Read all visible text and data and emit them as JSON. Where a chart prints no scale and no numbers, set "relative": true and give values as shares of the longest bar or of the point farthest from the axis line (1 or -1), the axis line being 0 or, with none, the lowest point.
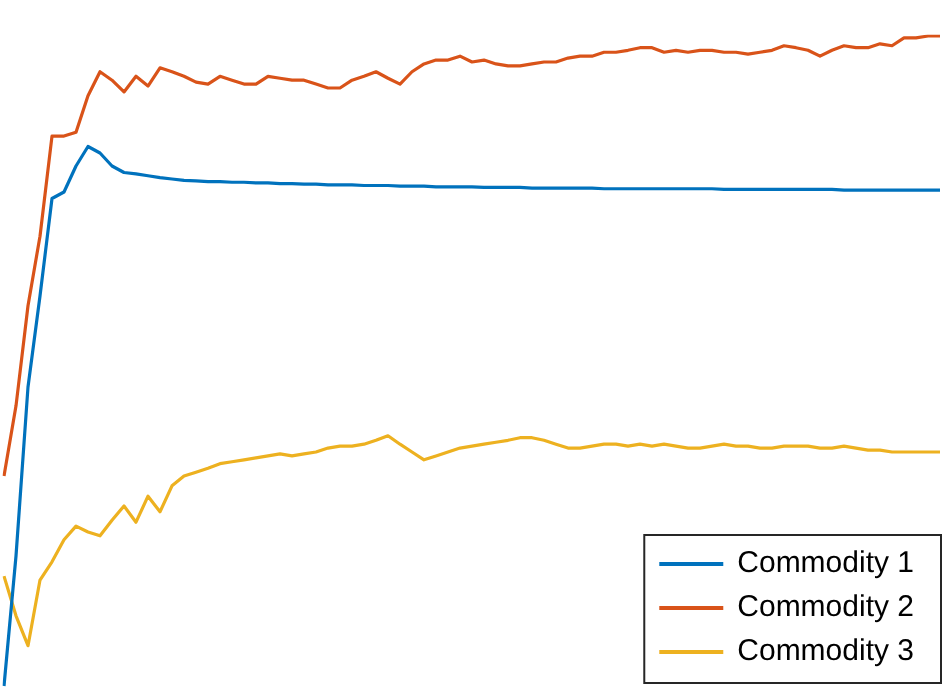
{
  "chart_data": {
    "type": "line",
    "relative": true,
    "legend": "bottom right",
    "marker": "none",
    "line_style": "solid",
    "categories": [
      null,
      null,
      null,
      null,
      null,
      null,
      null,
      null,
      null,
      null,
      null,
      null,
      null,
      null,
      null,
      null,
      null,
      null,
      null,
      null,
      null,
      null,
      null,
      null,
      null,
      null,
      null,
      null,
      null,
      null,
      null,
      null,
      null,
      null,
      null,
      null,
      null,
      null,
      null,
      null,
      null,
      null,
      null,
      null,
      null,
      null,
      null,
      null,
      null,
      null,
      null,
      null,
      null,
      null,
      null,
      null,
      null,
      null,
      null,
      null,
      null,
      null,
      null,
      null,
      null,
      null,
      null,
      null,
      null,
      null,
      null,
      null,
      null,
      null,
      null,
      null,
      null,
      null,
      null
    ],
    "series": [
      {
        "name": "Commodity 1",
        "color": "#0072bd",
        "values": [
          0,
          0.2,
          0.46,
          0.6,
          0.75,
          0.76,
          0.8,
          0.83,
          0.82,
          0.8,
          0.79,
          0.788,
          0.785,
          0.782,
          0.78,
          0.778,
          0.777,
          0.776,
          0.776,
          0.775,
          0.775,
          0.774,
          0.774,
          0.773,
          0.773,
          0.772,
          0.772,
          0.771,
          0.771,
          0.771,
          0.77,
          0.77,
          0.77,
          0.769,
          0.769,
          0.769,
          0.768,
          0.768,
          0.768,
          0.768,
          0.767,
          0.767,
          0.767,
          0.767,
          0.766,
          0.766,
          0.766,
          0.766,
          0.766,
          0.766,
          0.765,
          0.765,
          0.765,
          0.765,
          0.765,
          0.765,
          0.765,
          0.765,
          0.765,
          0.765,
          0.764,
          0.764,
          0.764,
          0.764,
          0.764,
          0.764,
          0.764,
          0.764,
          0.764,
          0.764,
          0.763,
          0.763,
          0.763,
          0.763,
          0.763,
          0.763,
          0.763,
          0.763,
          0.763
        ]
      },
      {
        "name": "Commodity 2",
        "color": "#d95319",
        "values": [
          0.323,
          0.431,
          0.585,
          0.692,
          0.846,
          0.846,
          0.852,
          0.908,
          0.945,
          0.932,
          0.914,
          0.938,
          0.923,
          0.951,
          0.945,
          0.938,
          0.929,
          0.926,
          0.938,
          0.932,
          0.926,
          0.926,
          0.938,
          0.935,
          0.932,
          0.932,
          0.926,
          0.92,
          0.92,
          0.932,
          0.938,
          0.945,
          0.935,
          0.926,
          0.945,
          0.957,
          0.963,
          0.963,
          0.969,
          0.96,
          0.963,
          0.957,
          0.954,
          0.954,
          0.957,
          0.96,
          0.96,
          0.966,
          0.969,
          0.969,
          0.975,
          0.975,
          0.978,
          0.982,
          0.982,
          0.975,
          0.978,
          0.975,
          0.978,
          0.978,
          0.975,
          0.975,
          0.972,
          0.975,
          0.978,
          0.985,
          0.982,
          0.978,
          0.969,
          0.978,
          0.985,
          0.982,
          0.982,
          0.988,
          0.985,
          0.997,
          0.997,
          1,
          1
        ]
      },
      {
        "name": "Commodity 3",
        "color": "#edb120",
        "values": [
          0.169,
          0.108,
          0.062,
          0.163,
          0.191,
          0.225,
          0.246,
          0.237,
          0.231,
          0.255,
          0.277,
          0.252,
          0.292,
          0.268,
          0.308,
          0.323,
          0.329,
          0.335,
          0.342,
          0.345,
          0.348,
          0.351,
          0.354,
          0.357,
          0.354,
          0.357,
          0.36,
          0.366,
          0.369,
          0.369,
          0.372,
          0.378,
          0.385,
          0.372,
          0.36,
          0.348,
          0.354,
          0.36,
          0.366,
          0.369,
          0.372,
          0.375,
          0.378,
          0.382,
          0.382,
          0.378,
          0.372,
          0.366,
          0.366,
          0.369,
          0.372,
          0.372,
          0.369,
          0.372,
          0.369,
          0.372,
          0.369,
          0.366,
          0.366,
          0.369,
          0.372,
          0.369,
          0.369,
          0.366,
          0.366,
          0.369,
          0.369,
          0.369,
          0.366,
          0.366,
          0.369,
          0.366,
          0.363,
          0.363,
          0.36,
          0.36,
          0.36,
          0.36,
          0.36
        ]
      }
    ]
  }
}
